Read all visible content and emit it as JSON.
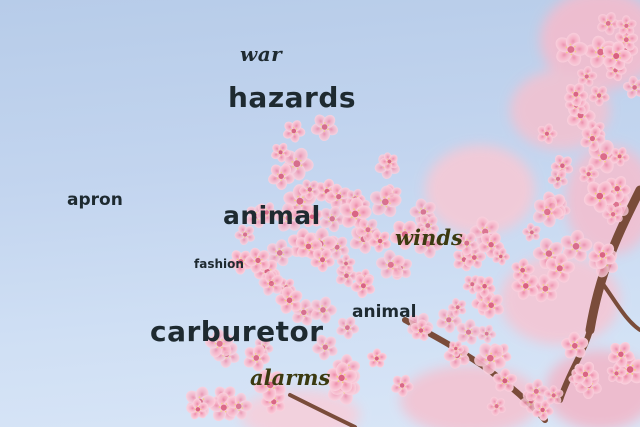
{
  "image": {
    "description_words": [],
    "colors": {
      "sky": "#c3d5ef",
      "blossom_light": "#fbd3df",
      "blossom_mid": "#f6aec4",
      "blossom_deep": "#ec8aa8",
      "branch": "#7a4c3a"
    }
  },
  "words": [
    {
      "text": "war",
      "color": "#1e2a30"
    },
    {
      "text": "hazards",
      "color": "#1e2a30"
    },
    {
      "text": "apron",
      "color": "#1e2a30"
    },
    {
      "text": "animal",
      "color": "#1e2a30"
    },
    {
      "text": "winds",
      "color": "#3b3a10"
    },
    {
      "text": "fashion",
      "color": "#1e2a30"
    },
    {
      "text": "animal",
      "color": "#1e2a30"
    },
    {
      "text": "carburetor",
      "color": "#1e2a30"
    },
    {
      "text": "alarms",
      "color": "#3b3a10"
    }
  ]
}
